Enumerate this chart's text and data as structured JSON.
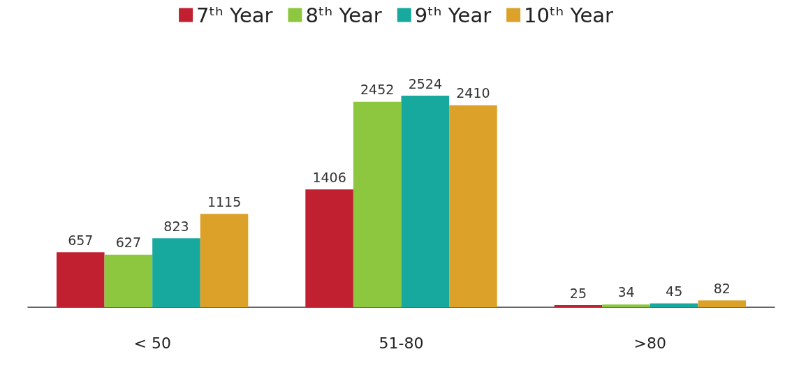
{
  "chart_data": {
    "type": "bar",
    "categories": [
      "< 50",
      "51-80",
      ">80"
    ],
    "series": [
      {
        "name": "7ᵗʰ Year",
        "color": "#c0202f",
        "values": [
          657,
          1406,
          25
        ]
      },
      {
        "name": "8ᵗʰ Year",
        "color": "#8dc63f",
        "values": [
          627,
          2452,
          34
        ]
      },
      {
        "name": "9ᵗʰ Year",
        "color": "#17a89e",
        "values": [
          823,
          2524,
          45
        ]
      },
      {
        "name": "10ᵗʰ Year",
        "color": "#dca128",
        "values": [
          1115,
          2410,
          82
        ]
      }
    ],
    "data_labels": true,
    "legend": "top",
    "tick_labels": "x"
  }
}
